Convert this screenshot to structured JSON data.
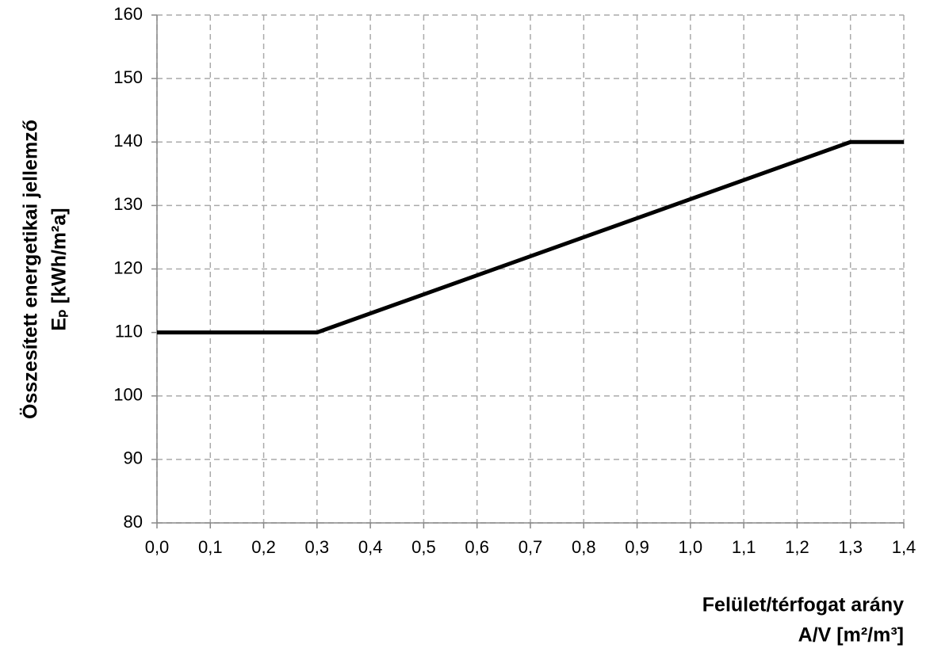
{
  "chart_data": {
    "type": "line",
    "y_title": [
      "Összesített energetikai jellemző",
      "Eₚ [kWh/m²a]"
    ],
    "x_title": [
      "Felület/térfogat arány",
      "A/V [m²/m³]"
    ],
    "x": [
      0,
      0.3,
      1.3,
      1.4
    ],
    "values": [
      110,
      110,
      140,
      140
    ],
    "color": "#000000",
    "xlim": [
      0,
      1.4
    ],
    "ylim": [
      80,
      160
    ],
    "xticks": [
      {
        "value": 0,
        "label": "0,0"
      },
      {
        "value": 0.1,
        "label": "0,1"
      },
      {
        "value": 0.2,
        "label": "0,2"
      },
      {
        "value": 0.3,
        "label": "0,3"
      },
      {
        "value": 0.4,
        "label": "0,4"
      },
      {
        "value": 0.5,
        "label": "0,5"
      },
      {
        "value": 0.6,
        "label": "0,6"
      },
      {
        "value": 0.7,
        "label": "0,7"
      },
      {
        "value": 0.8,
        "label": "0,8"
      },
      {
        "value": 0.9,
        "label": "0,9"
      },
      {
        "value": 1.0,
        "label": "1,0"
      },
      {
        "value": 1.1,
        "label": "1,1"
      },
      {
        "value": 1.2,
        "label": "1,2"
      },
      {
        "value": 1.3,
        "label": "1,3"
      },
      {
        "value": 1.4,
        "label": "1,4"
      }
    ],
    "yticks": [
      80,
      90,
      100,
      110,
      120,
      130,
      140,
      150,
      160
    ],
    "grid": true
  }
}
